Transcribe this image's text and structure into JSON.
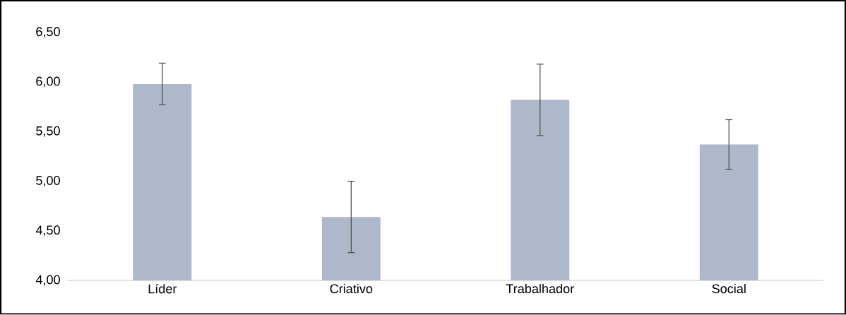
{
  "chart_data": {
    "type": "bar",
    "categories": [
      "Líder",
      "Criativo",
      "Trabalhador",
      "Social"
    ],
    "values": [
      5.98,
      4.64,
      5.82,
      5.37
    ],
    "errors": [
      0.21,
      0.36,
      0.36,
      0.25
    ],
    "color": "#adb9ca",
    "ylim": [
      4.0,
      6.5
    ],
    "yticks": [
      {
        "value": 4.0,
        "label": "4,00"
      },
      {
        "value": 4.5,
        "label": "4,50"
      },
      {
        "value": 5.0,
        "label": "5,00"
      },
      {
        "value": 5.5,
        "label": "5,50"
      },
      {
        "value": 6.0,
        "label": "6,00"
      },
      {
        "value": 6.5,
        "label": "6,50"
      }
    ],
    "grid": false
  }
}
